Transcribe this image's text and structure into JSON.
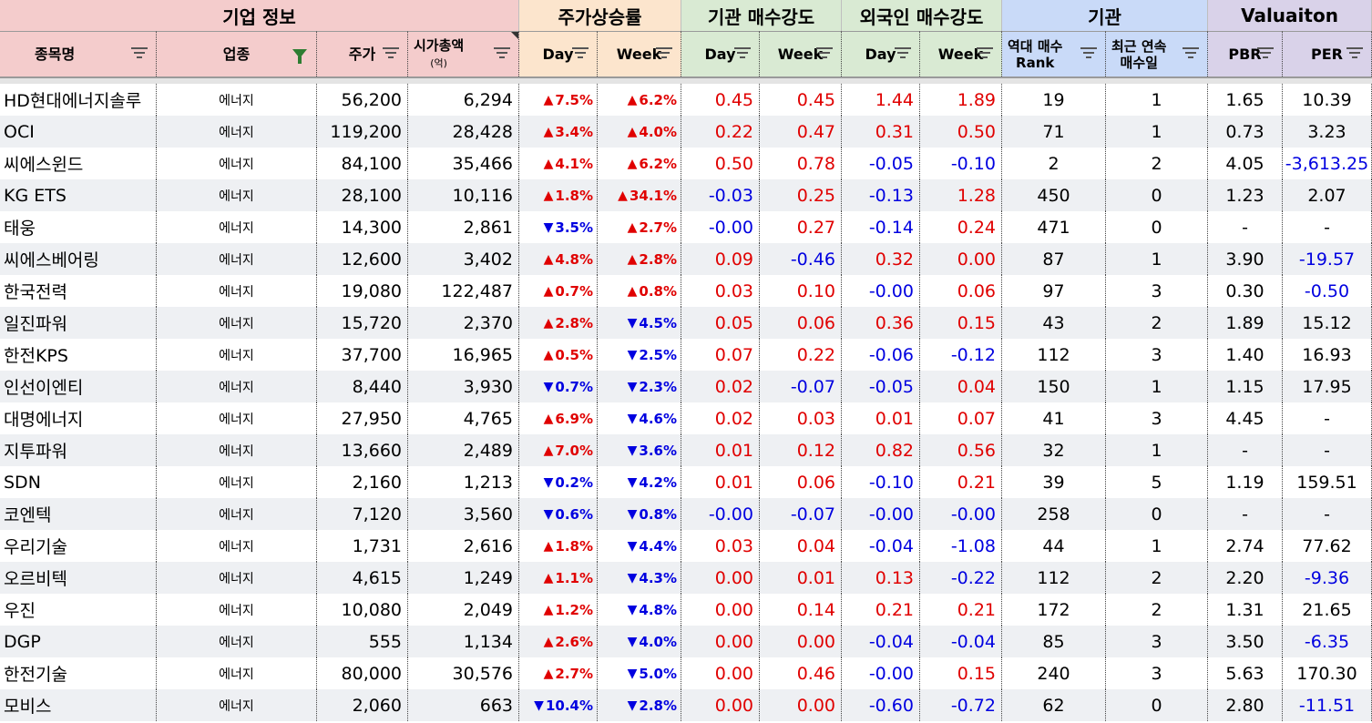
{
  "groups": [
    {
      "label": "기업 정보",
      "color": "#f4cccc"
    },
    {
      "label": "주가상승률",
      "color": "#fce5cd"
    },
    {
      "label": "기관 매수강도",
      "color": "#d9ead3"
    },
    {
      "label": "외국인 매수강도",
      "color": "#d9ead3"
    },
    {
      "label": "기관",
      "color": "#c9daf8"
    },
    {
      "label": "Valuaiton",
      "color": "#d9d2e9"
    }
  ],
  "columns": [
    {
      "label": "종목명"
    },
    {
      "label": "업종"
    },
    {
      "label": "주가"
    },
    {
      "label": "시가총액",
      "sub": "(억)"
    },
    {
      "label": "Day"
    },
    {
      "label": "Week"
    },
    {
      "label": "Day"
    },
    {
      "label": "Week"
    },
    {
      "label": "Day"
    },
    {
      "label": "Week"
    },
    {
      "label": "역대 매수",
      "sub": "Rank"
    },
    {
      "label": "최근 연속",
      "sub": "매수일"
    },
    {
      "label": "PBR"
    },
    {
      "label": "PER"
    }
  ],
  "colors": {
    "up": "#e00000",
    "down": "#0000e0"
  },
  "rows": [
    {
      "name": "HD현대에너지솔루",
      "industry": "에너지",
      "price": "56,200",
      "mcap": "6,294",
      "day": {
        "dir": "up",
        "v": "7.5%"
      },
      "week": {
        "dir": "up",
        "v": "6.2%"
      },
      "inst_day": "0.45",
      "inst_week": "0.45",
      "for_day": "1.44",
      "for_week": "1.89",
      "rank": "19",
      "streak": "1",
      "pbr": "1.65",
      "per": "10.39"
    },
    {
      "name": "OCI",
      "industry": "에너지",
      "price": "119,200",
      "mcap": "28,428",
      "day": {
        "dir": "up",
        "v": "3.4%"
      },
      "week": {
        "dir": "up",
        "v": "4.0%"
      },
      "inst_day": "0.22",
      "inst_week": "0.47",
      "for_day": "0.31",
      "for_week": "0.50",
      "rank": "71",
      "streak": "1",
      "pbr": "0.73",
      "per": "3.23"
    },
    {
      "name": "씨에스윈드",
      "industry": "에너지",
      "price": "84,100",
      "mcap": "35,466",
      "day": {
        "dir": "up",
        "v": "4.1%"
      },
      "week": {
        "dir": "up",
        "v": "6.2%"
      },
      "inst_day": "0.50",
      "inst_week": "0.78",
      "for_day": "-0.05",
      "for_week": "-0.10",
      "rank": "2",
      "streak": "2",
      "pbr": "4.05",
      "per": "-3,613.25"
    },
    {
      "name": "KG ETS",
      "industry": "에너지",
      "price": "28,100",
      "mcap": "10,116",
      "day": {
        "dir": "up",
        "v": "1.8%"
      },
      "week": {
        "dir": "up",
        "v": "34.1%"
      },
      "inst_day": "-0.03",
      "inst_week": "0.25",
      "for_day": "-0.13",
      "for_week": "1.28",
      "rank": "450",
      "streak": "0",
      "pbr": "1.23",
      "per": "2.07"
    },
    {
      "name": "태웅",
      "industry": "에너지",
      "price": "14,300",
      "mcap": "2,861",
      "day": {
        "dir": "down",
        "v": "3.5%"
      },
      "week": {
        "dir": "up",
        "v": "2.7%"
      },
      "inst_day": "-0.00",
      "inst_week": "0.27",
      "for_day": "-0.14",
      "for_week": "0.24",
      "rank": "471",
      "streak": "0",
      "pbr": "-",
      "per": "-"
    },
    {
      "name": "씨에스베어링",
      "industry": "에너지",
      "price": "12,600",
      "mcap": "3,402",
      "day": {
        "dir": "up",
        "v": "4.8%"
      },
      "week": {
        "dir": "up",
        "v": "2.8%"
      },
      "inst_day": "0.09",
      "inst_week": "-0.46",
      "for_day": "0.32",
      "for_week": "0.00",
      "rank": "87",
      "streak": "1",
      "pbr": "3.90",
      "per": "-19.57"
    },
    {
      "name": "한국전력",
      "industry": "에너지",
      "price": "19,080",
      "mcap": "122,487",
      "day": {
        "dir": "up",
        "v": "0.7%"
      },
      "week": {
        "dir": "up",
        "v": "0.8%"
      },
      "inst_day": "0.03",
      "inst_week": "0.10",
      "for_day": "-0.00",
      "for_week": "0.06",
      "rank": "97",
      "streak": "3",
      "pbr": "0.30",
      "per": "-0.50"
    },
    {
      "name": "일진파워",
      "industry": "에너지",
      "price": "15,720",
      "mcap": "2,370",
      "day": {
        "dir": "up",
        "v": "2.8%"
      },
      "week": {
        "dir": "down",
        "v": "4.5%"
      },
      "inst_day": "0.05",
      "inst_week": "0.06",
      "for_day": "0.36",
      "for_week": "0.15",
      "rank": "43",
      "streak": "2",
      "pbr": "1.89",
      "per": "15.12"
    },
    {
      "name": "한전KPS",
      "industry": "에너지",
      "price": "37,700",
      "mcap": "16,965",
      "day": {
        "dir": "up",
        "v": "0.5%"
      },
      "week": {
        "dir": "down",
        "v": "2.5%"
      },
      "inst_day": "0.07",
      "inst_week": "0.22",
      "for_day": "-0.06",
      "for_week": "-0.12",
      "rank": "112",
      "streak": "3",
      "pbr": "1.40",
      "per": "16.93"
    },
    {
      "name": "인선이엔티",
      "industry": "에너지",
      "price": "8,440",
      "mcap": "3,930",
      "day": {
        "dir": "down",
        "v": "0.7%"
      },
      "week": {
        "dir": "down",
        "v": "2.3%"
      },
      "inst_day": "0.02",
      "inst_week": "-0.07",
      "for_day": "-0.05",
      "for_week": "0.04",
      "rank": "150",
      "streak": "1",
      "pbr": "1.15",
      "per": "17.95"
    },
    {
      "name": "대명에너지",
      "industry": "에너지",
      "price": "27,950",
      "mcap": "4,765",
      "day": {
        "dir": "up",
        "v": "6.9%"
      },
      "week": {
        "dir": "down",
        "v": "4.6%"
      },
      "inst_day": "0.02",
      "inst_week": "0.03",
      "for_day": "0.01",
      "for_week": "0.07",
      "rank": "41",
      "streak": "3",
      "pbr": "4.45",
      "per": "-"
    },
    {
      "name": "지투파워",
      "industry": "에너지",
      "price": "13,660",
      "mcap": "2,489",
      "day": {
        "dir": "up",
        "v": "7.0%"
      },
      "week": {
        "dir": "down",
        "v": "3.6%"
      },
      "inst_day": "0.01",
      "inst_week": "0.12",
      "for_day": "0.82",
      "for_week": "0.56",
      "rank": "32",
      "streak": "1",
      "pbr": "-",
      "per": "-"
    },
    {
      "name": "SDN",
      "industry": "에너지",
      "price": "2,160",
      "mcap": "1,213",
      "day": {
        "dir": "down",
        "v": "0.2%"
      },
      "week": {
        "dir": "down",
        "v": "4.2%"
      },
      "inst_day": "0.01",
      "inst_week": "0.06",
      "for_day": "-0.10",
      "for_week": "0.21",
      "rank": "39",
      "streak": "5",
      "pbr": "1.19",
      "per": "159.51"
    },
    {
      "name": "코엔텍",
      "industry": "에너지",
      "price": "7,120",
      "mcap": "3,560",
      "day": {
        "dir": "down",
        "v": "0.6%"
      },
      "week": {
        "dir": "down",
        "v": "0.8%"
      },
      "inst_day": "-0.00",
      "inst_week": "-0.07",
      "for_day": "-0.00",
      "for_week": "-0.00",
      "rank": "258",
      "streak": "0",
      "pbr": "-",
      "per": "-"
    },
    {
      "name": "우리기술",
      "industry": "에너지",
      "price": "1,731",
      "mcap": "2,616",
      "day": {
        "dir": "up",
        "v": "1.8%"
      },
      "week": {
        "dir": "down",
        "v": "4.4%"
      },
      "inst_day": "0.03",
      "inst_week": "0.04",
      "for_day": "-0.04",
      "for_week": "-1.08",
      "rank": "44",
      "streak": "1",
      "pbr": "2.74",
      "per": "77.62"
    },
    {
      "name": "오르비텍",
      "industry": "에너지",
      "price": "4,615",
      "mcap": "1,249",
      "day": {
        "dir": "up",
        "v": "1.1%"
      },
      "week": {
        "dir": "down",
        "v": "4.3%"
      },
      "inst_day": "0.00",
      "inst_week": "0.01",
      "for_day": "0.13",
      "for_week": "-0.22",
      "rank": "112",
      "streak": "2",
      "pbr": "2.20",
      "per": "-9.36"
    },
    {
      "name": "우진",
      "industry": "에너지",
      "price": "10,080",
      "mcap": "2,049",
      "day": {
        "dir": "up",
        "v": "1.2%"
      },
      "week": {
        "dir": "down",
        "v": "4.8%"
      },
      "inst_day": "0.00",
      "inst_week": "0.14",
      "for_day": "0.21",
      "for_week": "0.21",
      "rank": "172",
      "streak": "2",
      "pbr": "1.31",
      "per": "21.65"
    },
    {
      "name": "DGP",
      "industry": "에너지",
      "price": "555",
      "mcap": "1,134",
      "day": {
        "dir": "up",
        "v": "2.6%"
      },
      "week": {
        "dir": "down",
        "v": "4.0%"
      },
      "inst_day": "0.00",
      "inst_week": "0.00",
      "for_day": "-0.04",
      "for_week": "-0.04",
      "rank": "85",
      "streak": "3",
      "pbr": "3.50",
      "per": "-6.35"
    },
    {
      "name": "한전기술",
      "industry": "에너지",
      "price": "80,000",
      "mcap": "30,576",
      "day": {
        "dir": "up",
        "v": "2.7%"
      },
      "week": {
        "dir": "down",
        "v": "5.0%"
      },
      "inst_day": "0.00",
      "inst_week": "0.46",
      "for_day": "-0.00",
      "for_week": "0.15",
      "rank": "240",
      "streak": "3",
      "pbr": "5.63",
      "per": "170.30"
    },
    {
      "name": "모비스",
      "industry": "에너지",
      "price": "2,060",
      "mcap": "663",
      "day": {
        "dir": "down",
        "v": "10.4%"
      },
      "week": {
        "dir": "down",
        "v": "2.8%"
      },
      "inst_day": "0.00",
      "inst_week": "0.00",
      "for_day": "-0.60",
      "for_week": "-0.72",
      "rank": "62",
      "streak": "0",
      "pbr": "2.80",
      "per": "-11.51"
    }
  ]
}
